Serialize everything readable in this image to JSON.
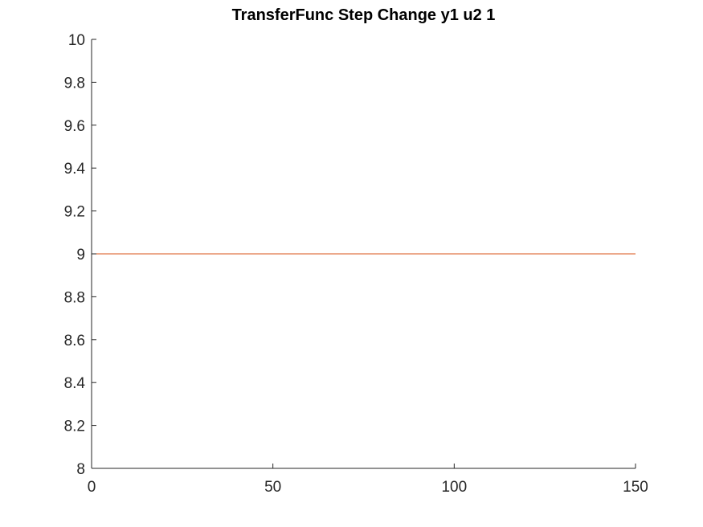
{
  "chart_data": {
    "type": "line",
    "title": "TransferFunc Step Change y1 u2 1",
    "xlabel": "",
    "ylabel": "",
    "xlim": [
      0,
      150
    ],
    "ylim": [
      8,
      10
    ],
    "xticks": [
      0,
      50,
      100,
      150
    ],
    "xtick_labels": [
      "0",
      "50",
      "100",
      "150"
    ],
    "yticks": [
      8,
      8.2,
      8.4,
      8.6,
      8.8,
      9,
      9.2,
      9.4,
      9.6,
      9.8,
      10
    ],
    "ytick_labels": [
      "8",
      "8.2",
      "8.4",
      "8.6",
      "8.8",
      "9",
      "9.2",
      "9.4",
      "9.6",
      "9.8",
      "10"
    ],
    "grid": false,
    "legend": "none",
    "series": [
      {
        "color": "#D95319",
        "x": [
          0,
          150
        ],
        "y": [
          9,
          9
        ]
      }
    ],
    "colors": {
      "axis": "#262626",
      "line": "#D95319"
    }
  }
}
